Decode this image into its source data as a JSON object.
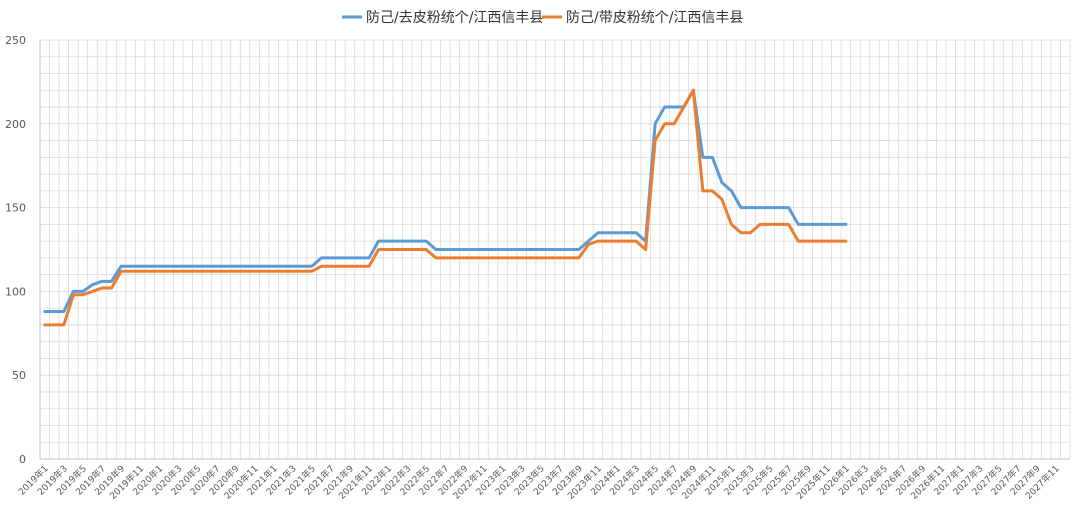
{
  "chart_data": {
    "type": "line",
    "title": "",
    "xlabel": "",
    "ylabel": "",
    "ylim": [
      0,
      250
    ],
    "y_ticks": [
      0,
      50,
      100,
      150,
      200,
      250
    ],
    "grid": true,
    "legend_position": "top-center",
    "x_tick_labels": [
      "2019年1",
      "2019年3",
      "2019年5",
      "2019年7",
      "2019年9",
      "2019年11",
      "2020年1",
      "2020年3",
      "2020年5",
      "2020年7",
      "2020年9",
      "2020年11",
      "2021年1",
      "2021年3",
      "2021年5",
      "2021年7",
      "2021年9",
      "2021年11",
      "2022年1",
      "2022年3",
      "2022年5",
      "2022年7",
      "2022年9",
      "2022年11",
      "2023年1",
      "2023年3",
      "2023年5",
      "2023年7",
      "2023年9",
      "2023年11",
      "2024年1",
      "2024年3",
      "2024年5",
      "2024年7",
      "2024年9",
      "2024年11",
      "2025年1",
      "2025年3",
      "2025年5",
      "2025年7",
      "2025年9",
      "2025年11",
      "2026年1",
      "2026年3",
      "2026年5",
      "2026年7",
      "2026年9",
      "2026年11",
      "2027年1",
      "2027年3",
      "2027年5",
      "2027年7",
      "2027年9",
      "2027年11"
    ],
    "x_range": [
      "2019-01",
      "2027-12"
    ],
    "series": [
      {
        "name": "防己/去皮粉统个/江西信丰县",
        "color": "#5b9bd5",
        "points": [
          [
            "2019-01",
            88
          ],
          [
            "2019-03",
            88
          ],
          [
            "2019-04",
            100
          ],
          [
            "2019-05",
            100
          ],
          [
            "2019-06",
            104
          ],
          [
            "2019-07",
            106
          ],
          [
            "2019-08",
            106
          ],
          [
            "2019-09",
            115
          ],
          [
            "2021-05",
            115
          ],
          [
            "2021-06",
            120
          ],
          [
            "2021-11",
            120
          ],
          [
            "2021-12",
            130
          ],
          [
            "2022-05",
            130
          ],
          [
            "2022-06",
            125
          ],
          [
            "2023-09",
            125
          ],
          [
            "2023-10",
            130
          ],
          [
            "2023-11",
            135
          ],
          [
            "2024-03",
            135
          ],
          [
            "2024-04",
            130
          ],
          [
            "2024-05",
            200
          ],
          [
            "2024-06",
            210
          ],
          [
            "2024-08",
            210
          ],
          [
            "2024-09",
            220
          ],
          [
            "2024-10",
            180
          ],
          [
            "2024-11",
            180
          ],
          [
            "2024-12",
            165
          ],
          [
            "2025-01",
            160
          ],
          [
            "2025-02",
            150
          ],
          [
            "2025-07",
            150
          ],
          [
            "2025-08",
            140
          ],
          [
            "2026-01",
            140
          ]
        ]
      },
      {
        "name": "防己/带皮粉统个/江西信丰县",
        "color": "#ed7d31",
        "points": [
          [
            "2019-01",
            80
          ],
          [
            "2019-03",
            80
          ],
          [
            "2019-04",
            98
          ],
          [
            "2019-05",
            98
          ],
          [
            "2019-06",
            100
          ],
          [
            "2019-07",
            102
          ],
          [
            "2019-08",
            102
          ],
          [
            "2019-09",
            112
          ],
          [
            "2021-05",
            112
          ],
          [
            "2021-06",
            115
          ],
          [
            "2021-11",
            115
          ],
          [
            "2021-12",
            125
          ],
          [
            "2022-05",
            125
          ],
          [
            "2022-06",
            120
          ],
          [
            "2023-09",
            120
          ],
          [
            "2023-10",
            128
          ],
          [
            "2023-11",
            130
          ],
          [
            "2024-03",
            130
          ],
          [
            "2024-04",
            125
          ],
          [
            "2024-05",
            190
          ],
          [
            "2024-06",
            200
          ],
          [
            "2024-07",
            200
          ],
          [
            "2024-09",
            220
          ],
          [
            "2024-10",
            160
          ],
          [
            "2024-11",
            160
          ],
          [
            "2024-12",
            155
          ],
          [
            "2025-01",
            140
          ],
          [
            "2025-02",
            135
          ],
          [
            "2025-03",
            135
          ],
          [
            "2025-04",
            140
          ],
          [
            "2025-07",
            140
          ],
          [
            "2025-08",
            130
          ],
          [
            "2026-01",
            130
          ]
        ]
      }
    ]
  }
}
